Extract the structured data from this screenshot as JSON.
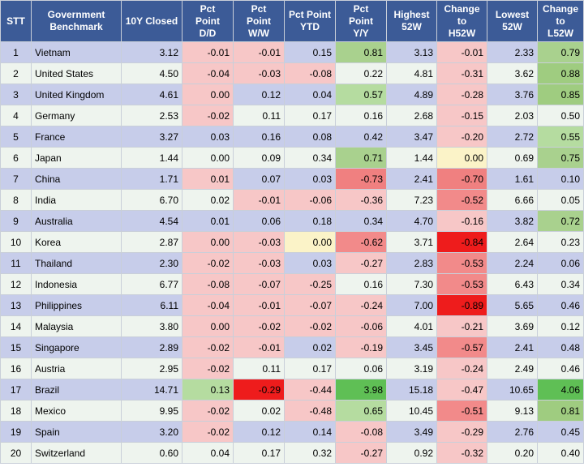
{
  "headers": [
    [
      "STT"
    ],
    [
      "Government",
      "Benchmark"
    ],
    [
      "10Y Closed"
    ],
    [
      "Pct",
      "Point",
      "D/D"
    ],
    [
      "Pct",
      "Point",
      "W/W"
    ],
    [
      "Pct Point",
      "YTD"
    ],
    [
      "Pct",
      "Point",
      "Y/Y"
    ],
    [
      "Highest",
      "52W"
    ],
    [
      "Change",
      "to",
      "H52W"
    ],
    [
      "Lowest",
      "52W"
    ],
    [
      "Change",
      "to",
      "L52W"
    ]
  ],
  "rows": [
    [
      "1",
      "Vietnam",
      "3.12",
      "-0.01",
      "-0.01",
      "0.15",
      "0.81",
      "3.13",
      "-0.01",
      "2.33",
      "0.79"
    ],
    [
      "2",
      "United States",
      "4.50",
      "-0.04",
      "-0.03",
      "-0.08",
      "0.22",
      "4.81",
      "-0.31",
      "3.62",
      "0.88"
    ],
    [
      "3",
      "United Kingdom",
      "4.61",
      "0.00",
      "0.12",
      "0.04",
      "0.57",
      "4.89",
      "-0.28",
      "3.76",
      "0.85"
    ],
    [
      "4",
      "Germany",
      "2.53",
      "-0.02",
      "0.11",
      "0.17",
      "0.16",
      "2.68",
      "-0.15",
      "2.03",
      "0.50"
    ],
    [
      "5",
      "France",
      "3.27",
      "0.03",
      "0.16",
      "0.08",
      "0.42",
      "3.47",
      "-0.20",
      "2.72",
      "0.55"
    ],
    [
      "6",
      "Japan",
      "1.44",
      "0.00",
      "0.09",
      "0.34",
      "0.71",
      "1.44",
      "0.00",
      "0.69",
      "0.75"
    ],
    [
      "7",
      "China",
      "1.71",
      "0.01",
      "0.07",
      "0.03",
      "-0.73",
      "2.41",
      "-0.70",
      "1.61",
      "0.10"
    ],
    [
      "8",
      "India",
      "6.70",
      "0.02",
      "-0.01",
      "-0.06",
      "-0.36",
      "7.23",
      "-0.52",
      "6.66",
      "0.05"
    ],
    [
      "9",
      "Australia",
      "4.54",
      "0.01",
      "0.06",
      "0.18",
      "0.34",
      "4.70",
      "-0.16",
      "3.82",
      "0.72"
    ],
    [
      "10",
      "Korea",
      "2.87",
      "0.00",
      "-0.03",
      "0.00",
      "-0.62",
      "3.71",
      "-0.84",
      "2.64",
      "0.23"
    ],
    [
      "11",
      "Thailand",
      "2.30",
      "-0.02",
      "-0.03",
      "0.03",
      "-0.27",
      "2.83",
      "-0.53",
      "2.24",
      "0.06"
    ],
    [
      "12",
      "Indonesia",
      "6.77",
      "-0.08",
      "-0.07",
      "-0.25",
      "0.16",
      "7.30",
      "-0.53",
      "6.43",
      "0.34"
    ],
    [
      "13",
      "Philippines",
      "6.11",
      "-0.04",
      "-0.01",
      "-0.07",
      "-0.24",
      "7.00",
      "-0.89",
      "5.65",
      "0.46"
    ],
    [
      "14",
      "Malaysia",
      "3.80",
      "0.00",
      "-0.02",
      "-0.02",
      "-0.06",
      "4.01",
      "-0.21",
      "3.69",
      "0.12"
    ],
    [
      "15",
      "Singapore",
      "2.89",
      "-0.02",
      "-0.01",
      "0.02",
      "-0.19",
      "3.45",
      "-0.57",
      "2.41",
      "0.48"
    ],
    [
      "16",
      "Austria",
      "2.95",
      "-0.02",
      "0.11",
      "0.17",
      "0.06",
      "3.19",
      "-0.24",
      "2.49",
      "0.46"
    ],
    [
      "17",
      "Brazil",
      "14.71",
      "0.13",
      "-0.29",
      "-0.44",
      "3.98",
      "15.18",
      "-0.47",
      "10.65",
      "4.06"
    ],
    [
      "18",
      "Mexico",
      "9.95",
      "-0.02",
      "0.02",
      "-0.48",
      "0.65",
      "10.45",
      "-0.51",
      "9.13",
      "0.81"
    ],
    [
      "19",
      "Spain",
      "3.20",
      "-0.02",
      "0.12",
      "0.14",
      "-0.08",
      "3.49",
      "-0.29",
      "2.76",
      "0.45"
    ],
    [
      "20",
      "Switzerland",
      "0.60",
      "0.04",
      "0.17",
      "0.32",
      "-0.27",
      "0.92",
      "-0.32",
      "0.20",
      "0.40"
    ]
  ],
  "cell_colors": {
    "3": {
      "1": "#f7c7c7",
      "2": "#f7c7c7",
      "3": "#f7c7c7",
      "4": "#f7c7c7",
      "7": "#f7c7c7",
      "10": "#f7c7c7",
      "11": "#f7c7c7",
      "12": "#f7c7c7",
      "13": "#f7c7c7",
      "14": "#f7c7c7",
      "15": "#f7c7c7",
      "16": "#f7c7c7",
      "17": "#b5dca0",
      "18": "#f7c7c7",
      "19": "#f7c7c7"
    },
    "4": {
      "1": "#f7c7c7",
      "2": "#f7c7c7",
      "8": "#f7c7c7",
      "10": "#f7c7c7",
      "11": "#f7c7c7",
      "12": "#f7c7c7",
      "13": "#f7c7c7",
      "14": "#f7c7c7",
      "15": "#f7c7c7",
      "17": "#ee1c1c"
    },
    "5": {
      "2": "#f7c7c7",
      "8": "#f7c7c7",
      "10": "#fbf3c8",
      "12": "#f7c7c7",
      "13": "#f7c7c7",
      "14": "#f7c7c7",
      "17": "#f7c7c7",
      "18": "#f7c7c7"
    },
    "6": {
      "1": "#a9d18e",
      "3": "#b5dca0",
      "6": "#a9d18e",
      "7": "#f08080",
      "8": "#f7c7c7",
      "10": "#f28a8a",
      "11": "#f7c7c7",
      "13": "#f7c7c7",
      "14": "#f7c7c7",
      "15": "#f7c7c7",
      "17": "#5fbf55",
      "18": "#b5dca0",
      "19": "#f7c7c7",
      "20": "#f7c7c7"
    },
    "8": {
      "1": "#f7c7c7",
      "2": "#f7c7c7",
      "3": "#f7c7c7",
      "4": "#f7c7c7",
      "5": "#f7c7c7",
      "6": "#fbf3c8",
      "7": "#f08080",
      "8": "#f28a8a",
      "9": "#f7c7c7",
      "10": "#ee1c1c",
      "11": "#f28a8a",
      "12": "#f28a8a",
      "13": "#ee1c1c",
      "14": "#f7c7c7",
      "15": "#f28a8a",
      "16": "#f7c7c7",
      "17": "#f7c7c7",
      "18": "#f28a8a",
      "19": "#f7c7c7",
      "20": "#f7c7c7"
    },
    "10": {
      "1": "#a9d18e",
      "2": "#9fcc80",
      "3": "#9fcc80",
      "5": "#b5dca0",
      "6": "#a9d18e",
      "9": "#a9d18e",
      "17": "#5fbf55",
      "18": "#9fcc80"
    }
  }
}
